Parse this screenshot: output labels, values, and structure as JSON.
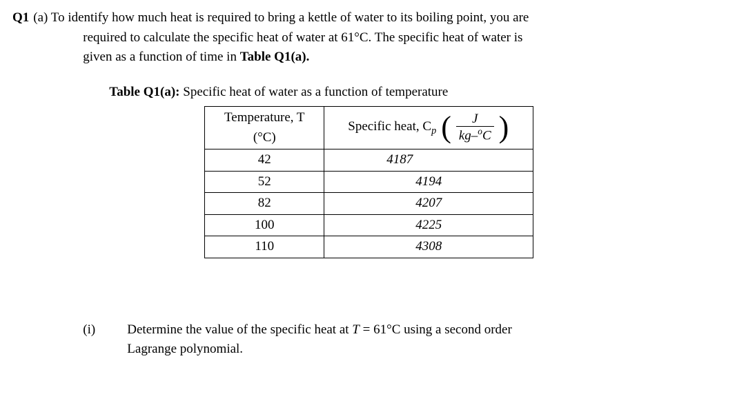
{
  "question": {
    "label": "Q1",
    "part": "(a)",
    "line1": "To identify how much heat is required to bring a kettle of water to its boiling point, you are",
    "line2": "required to calculate the specific heat of water at 61°C. The specific heat of water is",
    "line3": "given as a function of time in Table Q1(a)."
  },
  "caption": {
    "bold": "Table Q1(a):",
    "rest": " Specific heat of water as a function of temperature"
  },
  "table": {
    "header": {
      "col1_line1": "Temperature, T",
      "col1_line2": "(°C)",
      "col2_lead": "Specific heat, C",
      "col2_sub": "p",
      "frac_num": "J",
      "frac_den_kg": "kg–",
      "frac_den_deg": "o",
      "frac_den_c": "C"
    },
    "rows": [
      {
        "t": "42",
        "cp": "4187"
      },
      {
        "t": "52",
        "cp": "4194"
      },
      {
        "t": "82",
        "cp": "4207"
      },
      {
        "t": "100",
        "cp": "4225"
      },
      {
        "t": "110",
        "cp": "4308"
      }
    ]
  },
  "subpart": {
    "label": "(i)",
    "line1": "Determine the value of the specific heat at ",
    "tvar": "T",
    "eq": " = 61°C using a second order",
    "line2": "Lagrange polynomial."
  }
}
